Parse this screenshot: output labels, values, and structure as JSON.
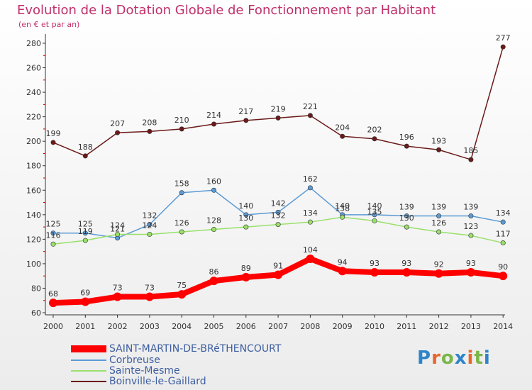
{
  "chart_data": {
    "type": "line",
    "title": "Evolution de la Dotation Globale de Fonctionnement par Habitant",
    "subtitle": "(en € et par an)",
    "categories": [
      "2000",
      "2001",
      "2002",
      "2003",
      "2004",
      "2005",
      "2006",
      "2007",
      "2008",
      "2009",
      "2010",
      "2011",
      "2012",
      "2013",
      "2014"
    ],
    "ylim": [
      60,
      280
    ],
    "yticks": [
      60,
      80,
      100,
      120,
      140,
      160,
      180,
      200,
      220,
      240,
      260,
      280
    ],
    "grid": false,
    "legend_position": "bottom-left",
    "series": [
      {
        "name": "Boinville-le-Gaillard",
        "color": "#6b1a1a",
        "values": [
          199,
          188,
          207,
          208,
          210,
          214,
          217,
          219,
          221,
          204,
          202,
          196,
          193,
          185,
          277
        ],
        "labels": [
          "199",
          "188",
          "207",
          "208",
          "210",
          "214",
          "217",
          "219",
          "221",
          "204",
          "202",
          "196",
          "193",
          "185",
          "277"
        ]
      },
      {
        "name": "Corbreuse",
        "color": "#5b9bd5",
        "values": [
          125,
          125,
          121,
          132,
          158,
          160,
          140,
          142,
          162,
          140,
          140,
          139,
          139,
          139,
          134
        ],
        "labels": [
          "125",
          "125",
          "121",
          "132",
          "158",
          "160",
          "140",
          "142",
          "162",
          "140",
          "140",
          "139",
          "139",
          "139",
          "134"
        ]
      },
      {
        "name": "Sainte-Mesme",
        "color": "#99e06a",
        "values": [
          116,
          119,
          124,
          124,
          126,
          128,
          130,
          132,
          134,
          138,
          135,
          130,
          126,
          123,
          117
        ],
        "labels": [
          "116",
          "119",
          "124",
          "124",
          "126",
          "128",
          "130",
          "132",
          "134",
          "138",
          "135",
          "130",
          "126",
          "123",
          "117"
        ]
      },
      {
        "name": "SAINT-MARTIN-DE-BRéTHENCOURT",
        "color": "#ff0000",
        "values": [
          68,
          69,
          73,
          73,
          75,
          86,
          89,
          91,
          104,
          94,
          93,
          93,
          92,
          93,
          90
        ],
        "labels": [
          "68",
          "69",
          "73",
          "73",
          "75",
          "86",
          "89",
          "91",
          "104",
          "94",
          "93",
          "93",
          "92",
          "93",
          "90"
        ]
      }
    ]
  },
  "legend": [
    {
      "name": "SAINT-MARTIN-DE-BRéTHENCOURT",
      "color": "#ff0000"
    },
    {
      "name": "Corbreuse",
      "color": "#5b9bd5"
    },
    {
      "name": "Sainte-Mesme",
      "color": "#99e06a"
    },
    {
      "name": "Boinville-le-Gaillard",
      "color": "#6b1a1a"
    }
  ],
  "logo": {
    "p": "P",
    "r": "r",
    "o": "o",
    "x": "x",
    "i": "i",
    "t": "t",
    "i2": "i"
  },
  "colors": {
    "title": "#c0306a",
    "axis": "#333333",
    "tick_red": "#cc0000"
  }
}
